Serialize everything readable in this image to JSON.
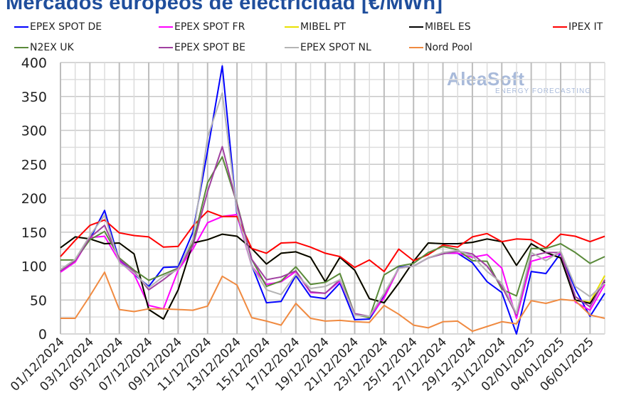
{
  "chart_data": {
    "type": "line",
    "title": "Mercados europeos de electricidad [€/MWh]",
    "xlabel": "",
    "ylabel": "",
    "ylim": [
      0,
      400
    ],
    "y_ticks": [
      0,
      50,
      100,
      150,
      200,
      250,
      300,
      350,
      400
    ],
    "grid": true,
    "legend_position": "top",
    "x": [
      "01/12/2024",
      "02/12/2024",
      "03/12/2024",
      "04/12/2024",
      "05/12/2024",
      "06/12/2024",
      "07/12/2024",
      "08/12/2024",
      "09/12/2024",
      "10/12/2024",
      "11/12/2024",
      "12/12/2024",
      "13/12/2024",
      "14/12/2024",
      "15/12/2024",
      "16/12/2024",
      "17/12/2024",
      "18/12/2024",
      "19/12/2024",
      "20/12/2024",
      "21/12/2024",
      "22/12/2024",
      "23/12/2024",
      "24/12/2024",
      "25/12/2024",
      "26/12/2024",
      "27/12/2024",
      "28/12/2024",
      "29/12/2024",
      "30/12/2024",
      "31/12/2024",
      "01/01/2025",
      "02/01/2025",
      "03/01/2025",
      "04/01/2025",
      "05/01/2025",
      "06/01/2025",
      "07/01/2025"
    ],
    "x_tick_labels": [
      "01/12/2024",
      "03/12/2024",
      "05/12/2024",
      "07/12/2024",
      "09/12/2024",
      "11/12/2024",
      "13/12/2024",
      "15/12/2024",
      "17/12/2024",
      "19/12/2024",
      "21/12/2024",
      "23/12/2024",
      "25/12/2024",
      "27/12/2024",
      "29/12/2024",
      "31/12/2024",
      "02/01/2025",
      "04/01/2025",
      "06/01/2025"
    ],
    "series": [
      {
        "name": "EPEX SPOT DE",
        "color": "#0000ff",
        "values": [
          93,
          108,
          140,
          182,
          108,
          88,
          70,
          98,
          99,
          150,
          270,
          395,
          175,
          101,
          46,
          48,
          86,
          55,
          52,
          75,
          21,
          22,
          55,
          98,
          100,
          112,
          119,
          119,
          105,
          77,
          61,
          0,
          92,
          89,
          119,
          66,
          26,
          60
        ]
      },
      {
        "name": "EPEX SPOT FR",
        "color": "#ff00ff",
        "values": [
          91,
          106,
          142,
          144,
          107,
          88,
          42,
          37,
          94,
          125,
          164,
          173,
          176,
          100,
          73,
          77,
          92,
          61,
          60,
          78,
          29,
          25,
          53,
          97,
          100,
          112,
          119,
          119,
          113,
          117,
          97,
          23,
          107,
          113,
          119,
          47,
          35,
          73
        ]
      },
      {
        "name": "MIBEL PT",
        "color": "#e8e000",
        "values": [
          127,
          143,
          140,
          133,
          134,
          118,
          36,
          22,
          65,
          134,
          139,
          147,
          144,
          126,
          103,
          119,
          121,
          113,
          77,
          113,
          94,
          52,
          46,
          75,
          107,
          134,
          133,
          133,
          135,
          140,
          136,
          101,
          133,
          120,
          112,
          50,
          47,
          86
        ]
      },
      {
        "name": "MIBEL ES",
        "color": "#000000",
        "values": [
          127,
          143,
          140,
          133,
          134,
          118,
          36,
          22,
          65,
          134,
          139,
          147,
          144,
          126,
          103,
          119,
          121,
          113,
          77,
          113,
          94,
          52,
          46,
          75,
          107,
          134,
          133,
          133,
          135,
          140,
          136,
          101,
          133,
          120,
          112,
          50,
          45,
          77
        ]
      },
      {
        "name": "IPEX IT",
        "color": "#ff0000",
        "values": [
          114,
          138,
          160,
          168,
          149,
          145,
          143,
          128,
          129,
          159,
          181,
          173,
          173,
          126,
          119,
          134,
          135,
          128,
          119,
          114,
          98,
          109,
          92,
          125,
          108,
          117,
          131,
          128,
          143,
          148,
          136,
          140,
          139,
          127,
          147,
          144,
          136,
          144
        ]
      },
      {
        "name": "N2EX UK",
        "color": "#5a8a3a",
        "values": [
          109,
          109,
          139,
          151,
          112,
          94,
          79,
          88,
          97,
          134,
          223,
          261,
          192,
          110,
          70,
          78,
          99,
          73,
          76,
          89,
          29,
          24,
          87,
          100,
          104,
          120,
          129,
          124,
          108,
          107,
          66,
          56,
          126,
          126,
          133,
          120,
          104,
          114
        ]
      },
      {
        "name": "EPEX SPOT BE",
        "color": "#a040a0",
        "values": [
          93,
          108,
          142,
          160,
          110,
          92,
          65,
          80,
          97,
          130,
          210,
          276,
          190,
          110,
          80,
          84,
          93,
          62,
          60,
          80,
          30,
          26,
          58,
          97,
          100,
          112,
          118,
          122,
          118,
          100,
          70,
          28,
          115,
          120,
          120,
          55,
          40,
          80
        ]
      },
      {
        "name": "EPEX SPOT NL",
        "color": "#b4b4b4",
        "values": [
          95,
          110,
          145,
          175,
          105,
          90,
          68,
          85,
          95,
          140,
          290,
          355,
          180,
          100,
          65,
          58,
          88,
          67,
          70,
          80,
          28,
          26,
          60,
          97,
          100,
          112,
          120,
          123,
          115,
          92,
          75,
          30,
          120,
          108,
          122,
          70,
          55,
          75
        ]
      },
      {
        "name": "Nord Pool",
        "color": "#f08a40",
        "values": [
          23,
          23,
          56,
          91,
          36,
          33,
          37,
          37,
          36,
          35,
          41,
          85,
          72,
          24,
          19,
          13,
          45,
          23,
          19,
          20,
          18,
          17,
          42,
          29,
          13,
          9,
          18,
          19,
          4,
          11,
          18,
          15,
          49,
          45,
          51,
          49,
          28,
          23
        ]
      }
    ]
  },
  "logo": {
    "name": "AleaSoft",
    "sub": "ENERGY FORECASTING"
  }
}
